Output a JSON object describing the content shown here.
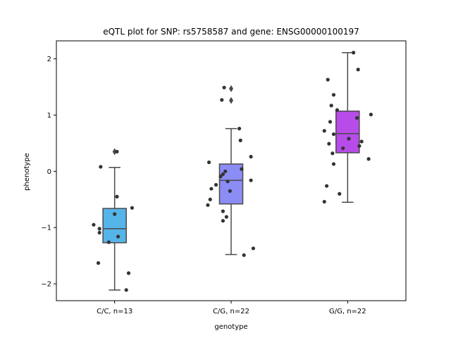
{
  "chart_data": {
    "type": "box",
    "title": "eQTL plot for SNP: rs5758587 and gene: ENSG00000100197",
    "xlabel": "genotype",
    "ylabel": "phenotype",
    "categories": [
      "C/C, n=13",
      "C/G, n=22",
      "G/G, n=22"
    ],
    "ylim": [
      -2.3,
      2.32
    ],
    "yticks": [
      -2,
      -1,
      0,
      1,
      2
    ],
    "ytick_labels": [
      "−2",
      "−1",
      "0",
      "1",
      "2"
    ],
    "grid": false,
    "colors": [
      "#55b4e8",
      "#8c8cf5",
      "#b84ce8"
    ],
    "box_edge_color": "#4a4a4a",
    "point_color": "#333333",
    "boxes": [
      {
        "category": "C/C, n=13",
        "q1": -1.27,
        "median": -1.02,
        "q3": -0.66,
        "whisker_low": -2.11,
        "whisker_high": 0.07,
        "fliers": [
          0.35
        ],
        "points": [
          {
            "y": 0.08,
            "j": -0.12
          },
          {
            "y": 0.35,
            "j": 0.02
          },
          {
            "y": -0.45,
            "j": 0.02
          },
          {
            "y": -0.65,
            "j": 0.15
          },
          {
            "y": -0.76,
            "j": 0.0
          },
          {
            "y": -0.95,
            "j": -0.18
          },
          {
            "y": -1.02,
            "j": -0.13
          },
          {
            "y": -1.09,
            "j": -0.13
          },
          {
            "y": -1.16,
            "j": 0.03
          },
          {
            "y": -1.26,
            "j": -0.05
          },
          {
            "y": -1.63,
            "j": -0.14
          },
          {
            "y": -1.81,
            "j": 0.12
          },
          {
            "y": -2.11,
            "j": 0.1
          }
        ]
      },
      {
        "category": "C/G, n=22",
        "q1": -0.58,
        "median": -0.16,
        "q3": 0.13,
        "whisker_low": -1.48,
        "whisker_high": 0.76,
        "fliers": [
          1.47,
          1.26
        ],
        "points": [
          {
            "y": 1.49,
            "j": -0.06
          },
          {
            "y": 1.27,
            "j": -0.08
          },
          {
            "y": 0.76,
            "j": 0.07
          },
          {
            "y": 0.55,
            "j": 0.08
          },
          {
            "y": 0.26,
            "j": 0.17
          },
          {
            "y": 0.16,
            "j": -0.19
          },
          {
            "y": 0.04,
            "j": 0.09
          },
          {
            "y": 0.0,
            "j": -0.05
          },
          {
            "y": -0.05,
            "j": -0.07
          },
          {
            "y": -0.09,
            "j": -0.09
          },
          {
            "y": -0.16,
            "j": 0.17
          },
          {
            "y": -0.18,
            "j": -0.03
          },
          {
            "y": -0.24,
            "j": -0.13
          },
          {
            "y": -0.31,
            "j": -0.17
          },
          {
            "y": -0.35,
            "j": -0.01
          },
          {
            "y": -0.5,
            "j": -0.18
          },
          {
            "y": -0.6,
            "j": -0.2
          },
          {
            "y": -0.71,
            "j": -0.07
          },
          {
            "y": -0.81,
            "j": -0.04
          },
          {
            "y": -0.88,
            "j": -0.07
          },
          {
            "y": -1.37,
            "j": 0.19
          },
          {
            "y": -1.49,
            "j": 0.11
          }
        ]
      },
      {
        "category": "G/G, n=22",
        "q1": 0.33,
        "median": 0.67,
        "q3": 1.07,
        "whisker_low": -0.55,
        "whisker_high": 2.11,
        "fliers": [],
        "points": [
          {
            "y": 2.11,
            "j": 0.05
          },
          {
            "y": 1.81,
            "j": 0.09
          },
          {
            "y": 1.63,
            "j": -0.17
          },
          {
            "y": 1.36,
            "j": -0.12
          },
          {
            "y": 1.17,
            "j": -0.14
          },
          {
            "y": 1.09,
            "j": -0.09
          },
          {
            "y": 1.01,
            "j": 0.2
          },
          {
            "y": 0.95,
            "j": 0.08
          },
          {
            "y": 0.88,
            "j": -0.15
          },
          {
            "y": 0.72,
            "j": -0.2
          },
          {
            "y": 0.66,
            "j": -0.12
          },
          {
            "y": 0.58,
            "j": 0.01
          },
          {
            "y": 0.53,
            "j": 0.12
          },
          {
            "y": 0.49,
            "j": -0.16
          },
          {
            "y": 0.45,
            "j": 0.1
          },
          {
            "y": 0.41,
            "j": -0.04
          },
          {
            "y": 0.32,
            "j": -0.13
          },
          {
            "y": 0.22,
            "j": 0.18
          },
          {
            "y": 0.13,
            "j": -0.12
          },
          {
            "y": -0.26,
            "j": -0.18
          },
          {
            "y": -0.4,
            "j": -0.07
          },
          {
            "y": -0.54,
            "j": -0.2
          }
        ]
      }
    ]
  }
}
